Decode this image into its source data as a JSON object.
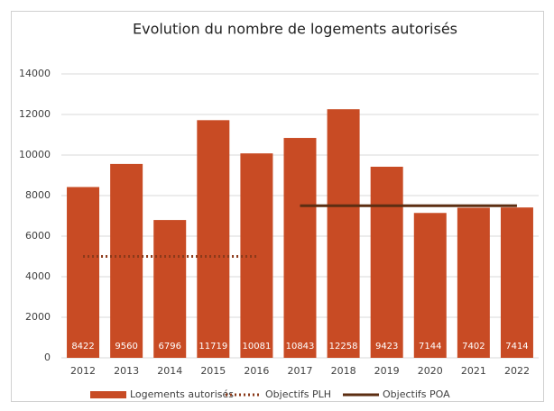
{
  "chart_data": {
    "type": "bar",
    "title": "Evolution du nombre de logements autorisés",
    "categories": [
      "2012",
      "2013",
      "2014",
      "2015",
      "2016",
      "2017",
      "2018",
      "2019",
      "2020",
      "2021",
      "2022"
    ],
    "series": [
      {
        "name": "Logements autorisés",
        "type": "bar",
        "color": "#c84b24",
        "values": [
          8422,
          9560,
          6796,
          11719,
          10081,
          10843,
          12258,
          9423,
          7144,
          7402,
          7414
        ]
      },
      {
        "name": "Objectifs PLH",
        "type": "line",
        "style": "dotted",
        "color": "#8b3a1a",
        "values": [
          5000,
          5000,
          5000,
          5000,
          5000,
          null,
          null,
          null,
          null,
          null,
          null
        ]
      },
      {
        "name": "Objectifs POA",
        "type": "line",
        "style": "solid",
        "color": "#5c2e12",
        "values": [
          null,
          null,
          null,
          null,
          null,
          7500,
          7500,
          7500,
          7500,
          7500,
          7500
        ]
      }
    ],
    "ylim": [
      0,
      14000
    ],
    "yticks": [
      0,
      2000,
      4000,
      6000,
      8000,
      10000,
      12000,
      14000
    ],
    "grid": true,
    "legend": "bottom"
  }
}
